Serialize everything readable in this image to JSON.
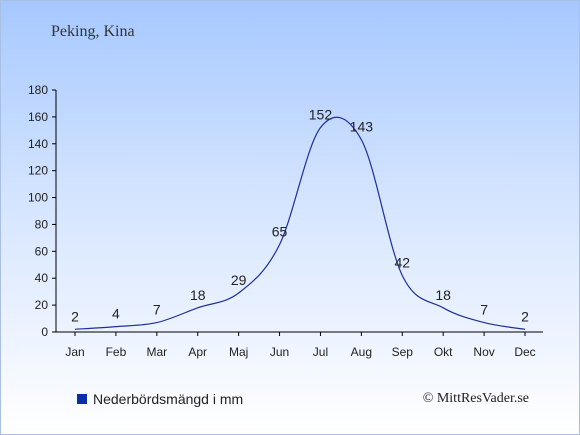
{
  "title": "Peking, Kina",
  "legend_label": "Nederbördsmängd i mm",
  "credit": "© MittResVader.se",
  "colors": {
    "line": "#1f2f9a",
    "swatch": "#0a2ea6",
    "text": "#222222"
  },
  "chart_data": {
    "type": "line",
    "categories": [
      "Jan",
      "Feb",
      "Mar",
      "Apr",
      "Maj",
      "Jun",
      "Jul",
      "Aug",
      "Sep",
      "Okt",
      "Nov",
      "Dec"
    ],
    "series": [
      {
        "name": "Nederbördsmängd i mm",
        "values": [
          2,
          4,
          7,
          18,
          29,
          65,
          152,
          143,
          42,
          18,
          7,
          2
        ]
      }
    ],
    "ylim": [
      0,
      180
    ],
    "yticks": [
      0,
      20,
      40,
      60,
      80,
      100,
      120,
      140,
      160,
      180
    ],
    "grid": false,
    "data_labels": true
  }
}
